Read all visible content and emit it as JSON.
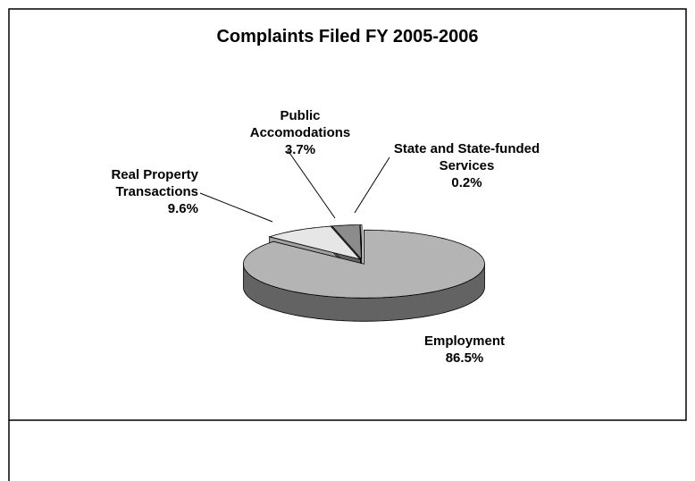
{
  "chart_data": {
    "type": "pie",
    "title": "Complaints Filed FY 2005-2006",
    "categories": [
      "Employment",
      "Real Property Transactions",
      "Public Accomodations",
      "State and State-funded Services"
    ],
    "values": [
      86.5,
      9.6,
      3.7,
      0.2
    ],
    "value_labels": [
      "86.5%",
      "9.6%",
      "3.7%",
      "0.2%"
    ],
    "colors": [
      "#b4b4b4",
      "#e6e6e6",
      "#8c8c8c",
      "#ffffff"
    ]
  }
}
